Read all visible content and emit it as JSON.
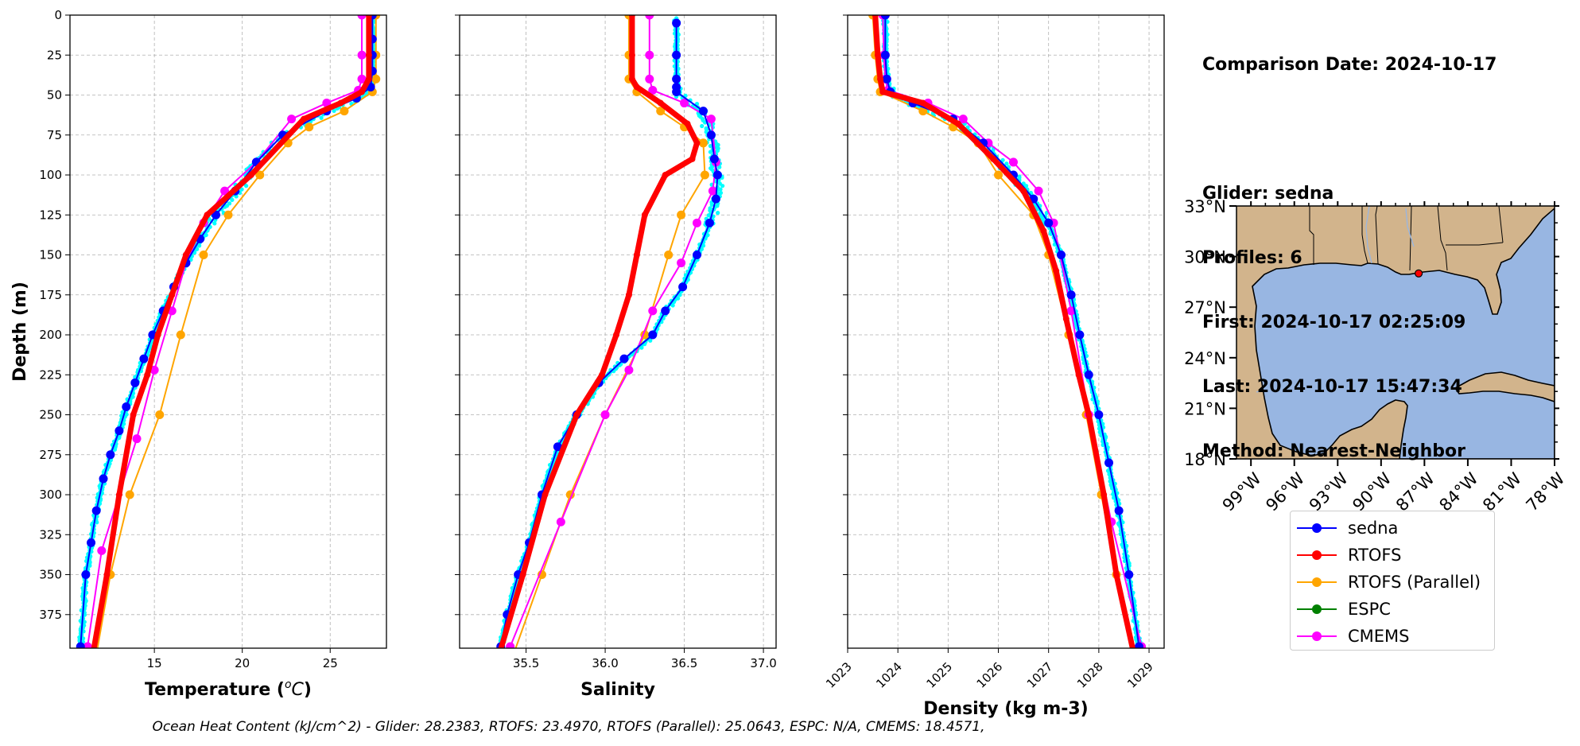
{
  "comparison": {
    "date_line": "Comparison Date: 2024-10-17",
    "glider_line": "Glider: sedna",
    "profiles_line": "Profiles: 6",
    "first_line": "First: 2024-10-17 02:25:09",
    "last_line": "Last: 2024-10-17 15:47:34",
    "method_line": "Method: Nearest-Neighbor"
  },
  "footer_text": "Ocean Heat Content (kJ/cm^2) - Glider: 28.2383,  RTOFS: 23.4970,  RTOFS (Parallel): 25.0643,  ESPC: N/A,  CMEMS: 18.4571,",
  "legend": [
    {
      "name": "sedna",
      "color": "#0000ff"
    },
    {
      "name": "RTOFS",
      "color": "#ff0000"
    },
    {
      "name": "RTOFS (Parallel)",
      "color": "#ffa500"
    },
    {
      "name": "ESPC",
      "color": "#008000"
    },
    {
      "name": "CMEMS",
      "color": "#ff00ff"
    }
  ],
  "colors": {
    "glider_points": "#00ffff",
    "grid": "#b0b0b0",
    "land": "#d2b48c",
    "ocean": "#98b6e2"
  },
  "chart_data": [
    {
      "type": "line",
      "xlabel": "Temperature ($^{o}C$)",
      "xlim": [
        10.2,
        28.2
      ],
      "xticks": [
        15,
        20,
        25
      ],
      "ylabel": "Depth (m)",
      "ylim": [
        396,
        0
      ],
      "yticks": [
        0,
        25,
        50,
        75,
        100,
        125,
        150,
        175,
        200,
        225,
        250,
        275,
        300,
        325,
        350,
        375
      ],
      "grid": true,
      "series": [
        {
          "name": "sedna",
          "x": [
            27.4,
            27.4,
            27.4,
            27.4,
            27.3,
            26.5,
            24.8,
            22.3,
            20.8,
            19.6,
            18.5,
            17.6,
            16.8,
            16.1,
            15.5,
            14.9,
            14.4,
            13.9,
            13.4,
            13.0,
            12.5,
            12.1,
            11.7,
            11.4,
            11.1,
            10.8
          ],
          "y": [
            0,
            15,
            25,
            35,
            45,
            52,
            60,
            75,
            92,
            110,
            125,
            140,
            155,
            170,
            185,
            200,
            215,
            230,
            245,
            260,
            275,
            290,
            310,
            330,
            350,
            395
          ]
        },
        {
          "name": "RTOFS",
          "x": [
            27.2,
            27.2,
            27.2,
            26.8,
            25.6,
            23.5,
            20.5,
            18.0,
            16.8,
            16.0,
            15.2,
            14.6,
            13.8,
            13.0,
            12.3,
            11.5
          ],
          "y": [
            0,
            25,
            40,
            48,
            55,
            65,
            100,
            125,
            150,
            175,
            200,
            225,
            250,
            300,
            350,
            400
          ]
        },
        {
          "name": "RTOFS (Parallel)",
          "x": [
            27.6,
            27.6,
            27.6,
            27.4,
            25.8,
            23.8,
            22.6,
            21.0,
            19.2,
            17.8,
            16.5,
            15.3,
            13.6,
            12.5,
            11.7
          ],
          "y": [
            0,
            25,
            40,
            48,
            60,
            70,
            80,
            100,
            125,
            150,
            200,
            250,
            300,
            350,
            400
          ]
        },
        {
          "name": "CMEMS",
          "x": [
            26.8,
            26.8,
            26.8,
            26.6,
            24.8,
            22.8,
            20.8,
            19.0,
            17.8,
            16.8,
            16.0,
            15.0,
            14.0,
            12.0,
            11.2
          ],
          "y": [
            0,
            25,
            40,
            47,
            55,
            65,
            92,
            110,
            130,
            155,
            185,
            222,
            265,
            335,
            395
          ]
        }
      ]
    },
    {
      "type": "line",
      "xlabel": "Salinity",
      "xlim": [
        35.08,
        37.08
      ],
      "xticks": [
        35.5,
        36.0,
        36.5,
        37.0
      ],
      "ylim": [
        396,
        0
      ],
      "grid": true,
      "series": [
        {
          "name": "sedna",
          "x": [
            36.45,
            36.45,
            36.45,
            36.45,
            36.45,
            36.62,
            36.67,
            36.69,
            36.71,
            36.7,
            36.66,
            36.58,
            36.49,
            36.38,
            36.3,
            36.12,
            35.96,
            35.82,
            35.7,
            35.6,
            35.52,
            35.45,
            35.38,
            35.34
          ],
          "y": [
            5,
            25,
            40,
            45,
            48,
            60,
            75,
            90,
            100,
            115,
            130,
            150,
            170,
            185,
            200,
            215,
            230,
            250,
            270,
            300,
            330,
            350,
            375,
            395
          ]
        },
        {
          "name": "RTOFS",
          "x": [
            36.17,
            36.17,
            36.17,
            36.2,
            36.35,
            36.52,
            36.58,
            36.55,
            36.38,
            36.25,
            36.2,
            36.15,
            36.07,
            35.98,
            35.82,
            35.62,
            35.48,
            35.33
          ],
          "y": [
            0,
            25,
            40,
            45,
            55,
            68,
            80,
            90,
            100,
            125,
            150,
            175,
            200,
            225,
            250,
            300,
            350,
            400
          ]
        },
        {
          "name": "RTOFS (Parallel)",
          "x": [
            36.15,
            36.15,
            36.15,
            36.2,
            36.35,
            36.5,
            36.62,
            36.63,
            36.48,
            36.4,
            36.25,
            36.0,
            35.78,
            35.6,
            35.42
          ],
          "y": [
            0,
            25,
            40,
            48,
            60,
            70,
            80,
            100,
            125,
            150,
            200,
            250,
            300,
            350,
            400
          ]
        },
        {
          "name": "CMEMS",
          "x": [
            36.28,
            36.28,
            36.28,
            36.3,
            36.5,
            36.67,
            36.7,
            36.68,
            36.58,
            36.48,
            36.3,
            36.15,
            36.0,
            35.72,
            35.4
          ],
          "y": [
            0,
            25,
            40,
            47,
            55,
            65,
            92,
            110,
            130,
            155,
            185,
            222,
            250,
            317,
            395
          ]
        }
      ]
    },
    {
      "type": "line",
      "xlabel": "Density (kg m-3)",
      "xlim": [
        1023.0,
        1029.3
      ],
      "xticks": [
        1023,
        1024,
        1025,
        1026,
        1027,
        1028,
        1029
      ],
      "ylim": [
        396,
        0
      ],
      "grid": true,
      "series": [
        {
          "name": "sedna",
          "x": [
            1023.75,
            1023.75,
            1023.78,
            1023.85,
            1024.3,
            1025.1,
            1025.7,
            1026.3,
            1026.7,
            1027.0,
            1027.25,
            1027.45,
            1027.62,
            1027.8,
            1028.0,
            1028.2,
            1028.4,
            1028.6,
            1028.8
          ],
          "y": [
            0,
            25,
            40,
            48,
            55,
            65,
            80,
            100,
            115,
            130,
            150,
            175,
            200,
            225,
            250,
            280,
            310,
            350,
            395
          ]
        },
        {
          "name": "RTOFS",
          "x": [
            1023.55,
            1023.6,
            1023.65,
            1023.7,
            1024.5,
            1025.2,
            1025.9,
            1026.5,
            1026.9,
            1027.15,
            1027.35,
            1027.6,
            1027.8,
            1028.1,
            1028.35,
            1028.7
          ],
          "y": [
            0,
            25,
            40,
            48,
            55,
            68,
            90,
            110,
            135,
            160,
            190,
            225,
            250,
            300,
            350,
            400
          ]
        },
        {
          "name": "RTOFS (Parallel)",
          "x": [
            1023.5,
            1023.55,
            1023.6,
            1023.65,
            1024.5,
            1025.1,
            1025.6,
            1026.0,
            1026.7,
            1027.0,
            1027.4,
            1027.75,
            1028.05,
            1028.35,
            1028.7
          ],
          "y": [
            0,
            25,
            40,
            48,
            60,
            70,
            80,
            100,
            125,
            150,
            200,
            250,
            300,
            350,
            400
          ]
        },
        {
          "name": "CMEMS",
          "x": [
            1023.7,
            1023.72,
            1023.75,
            1023.8,
            1024.6,
            1025.3,
            1025.8,
            1026.3,
            1026.8,
            1027.1,
            1027.45,
            1027.8,
            1028.25,
            1028.85
          ],
          "y": [
            0,
            25,
            40,
            47,
            55,
            65,
            80,
            92,
            110,
            130,
            185,
            250,
            317,
            395
          ]
        }
      ]
    },
    {
      "type": "map",
      "lon_range": [
        -100,
        -78
      ],
      "lat_range": [
        18,
        33
      ],
      "xticks": [
        "99°W",
        "96°W",
        "93°W",
        "90°W",
        "87°W",
        "84°W",
        "81°W",
        "78°W"
      ],
      "yticks": [
        "33°N",
        "30°N",
        "27°N",
        "24°N",
        "21°N",
        "18°N"
      ],
      "glider_location": {
        "lon": -87.4,
        "lat": 29.0
      }
    }
  ]
}
